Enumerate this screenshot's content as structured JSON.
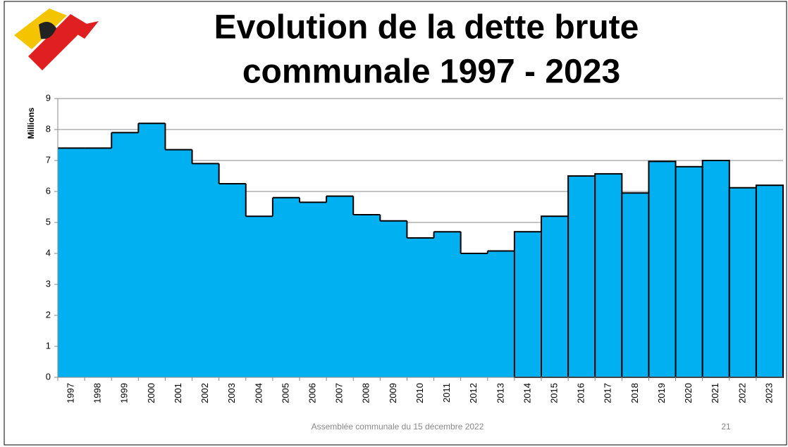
{
  "chart_data": {
    "type": "bar",
    "title_lines": [
      "Evolution de la dette brute",
      "communale 1997 - 2023"
    ],
    "y_label": "Millions",
    "footer": "Assemblée communale du 15 décembre 2022",
    "page_number": "21",
    "categories": [
      "1997",
      "1998",
      "1999",
      "2000",
      "2001",
      "2002",
      "2003",
      "2004",
      "2005",
      "2006",
      "2007",
      "2008",
      "2009",
      "2010",
      "2011",
      "2012",
      "2013",
      "2014",
      "2015",
      "2016",
      "2017",
      "2018",
      "2019",
      "2020",
      "2021",
      "2022",
      "2023"
    ],
    "values": [
      7.4,
      7.4,
      7.9,
      8.2,
      7.35,
      6.9,
      6.25,
      5.2,
      5.8,
      5.65,
      5.85,
      5.25,
      5.05,
      4.5,
      4.7,
      4.0,
      4.08,
      4.7,
      5.2,
      6.5,
      6.57,
      5.95,
      6.97,
      6.8,
      7.0,
      6.12,
      6.2
    ],
    "color": "#00b0f0",
    "ylim": [
      0,
      9
    ],
    "yticks": [
      0,
      1,
      2,
      3,
      4,
      5,
      6,
      7,
      8,
      9
    ],
    "grid": true
  }
}
